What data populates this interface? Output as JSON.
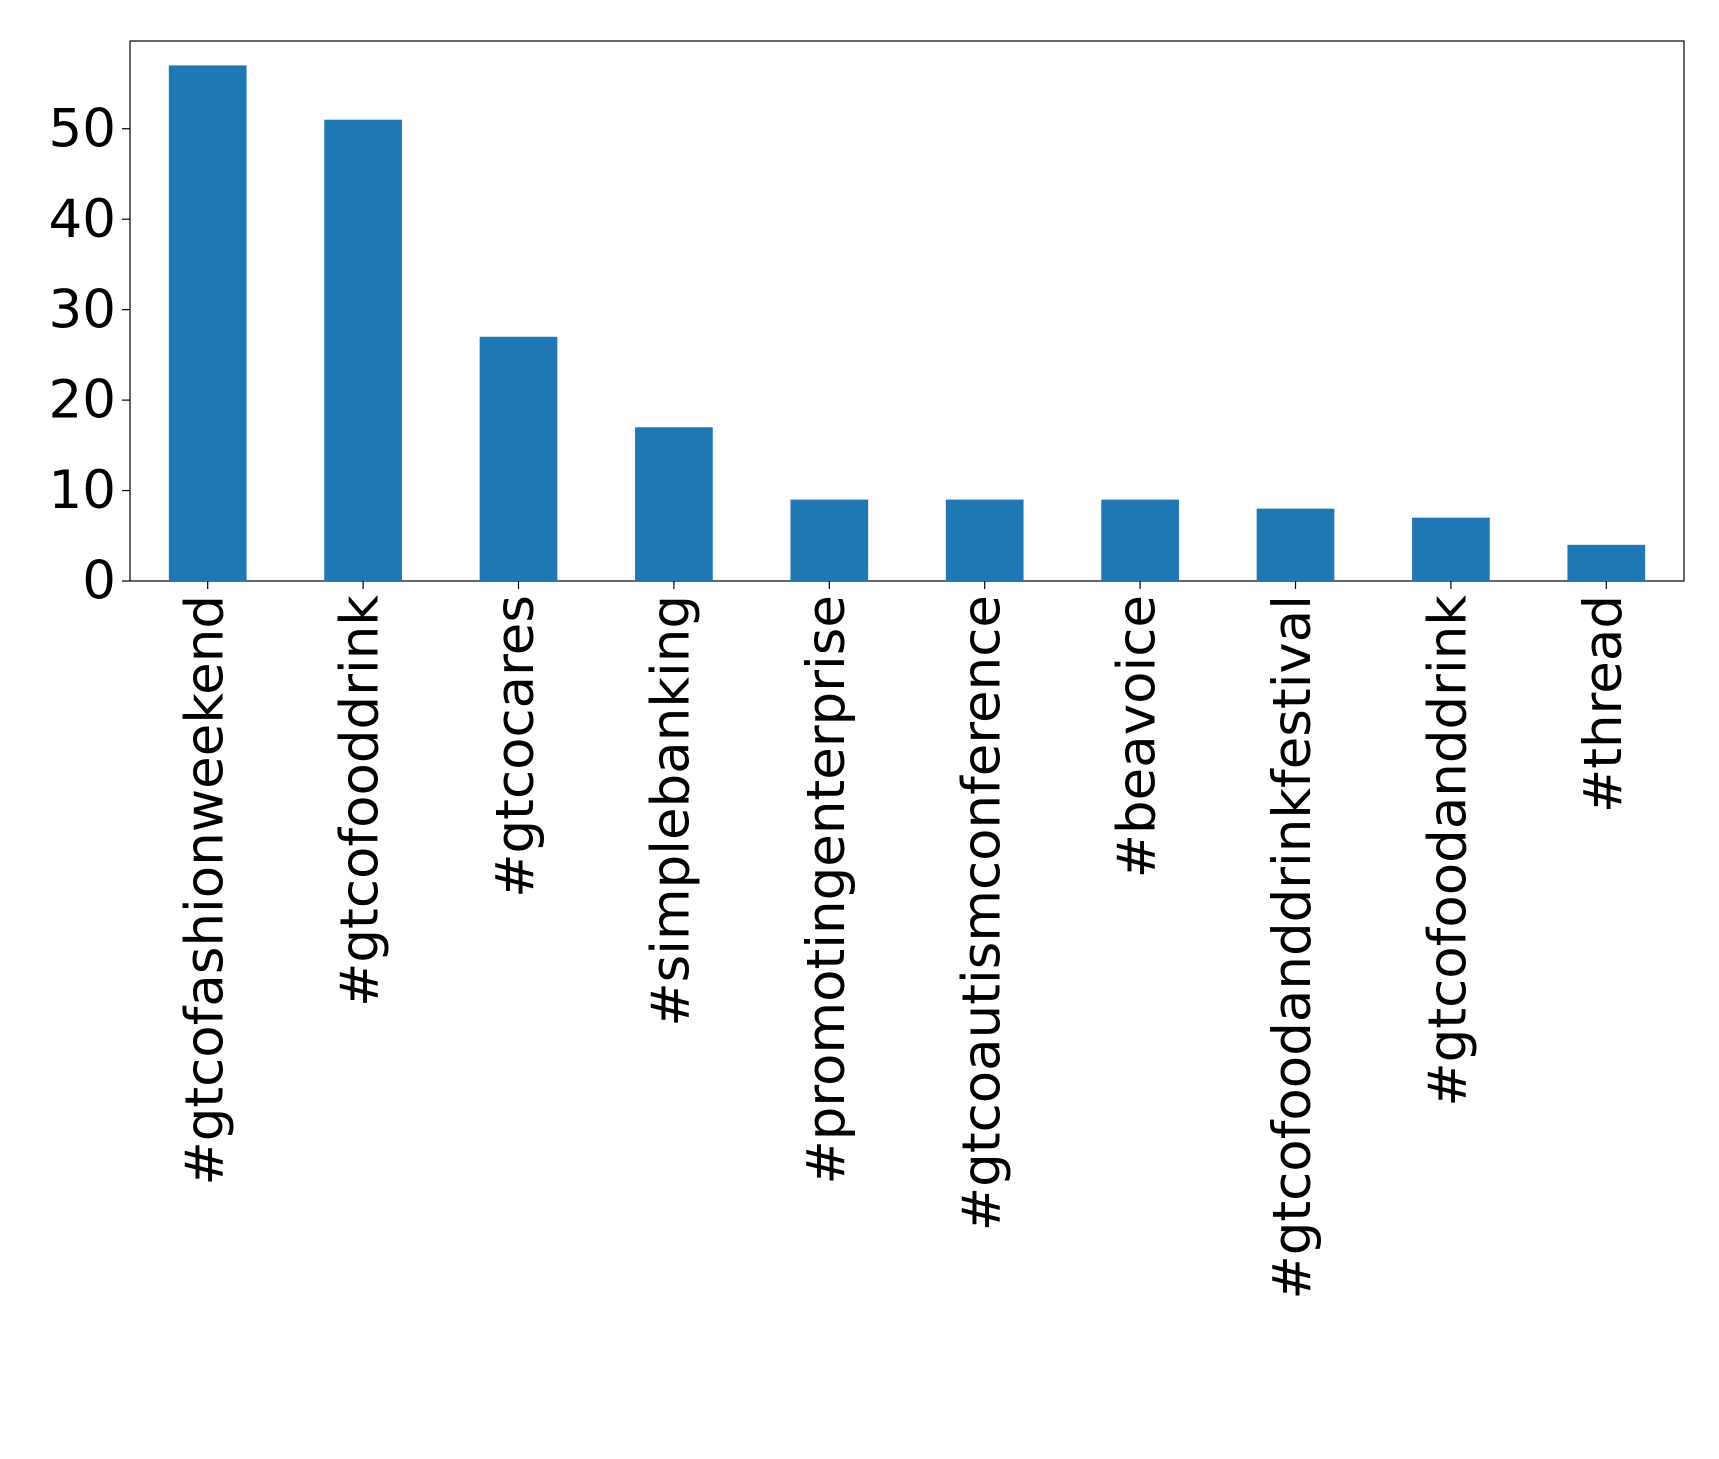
{
  "chart_data": {
    "type": "bar",
    "categories": [
      "#gtcofashionweekend",
      "#gtcofooddrink",
      "#gtcocares",
      "#simplebanking",
      "#promotingenterprise",
      "#gtcoautismconference",
      "#beavoice",
      "#gtcofoodanddrinkfestival",
      "#gtcofoodanddrink",
      "#thread"
    ],
    "values": [
      57,
      51,
      27,
      17,
      9,
      9,
      9,
      8,
      7,
      4
    ],
    "color": "#1f77b4",
    "ylim": [
      0,
      59.7
    ],
    "yticks": [
      0,
      10,
      20,
      30,
      40,
      50
    ],
    "grid": false
  }
}
